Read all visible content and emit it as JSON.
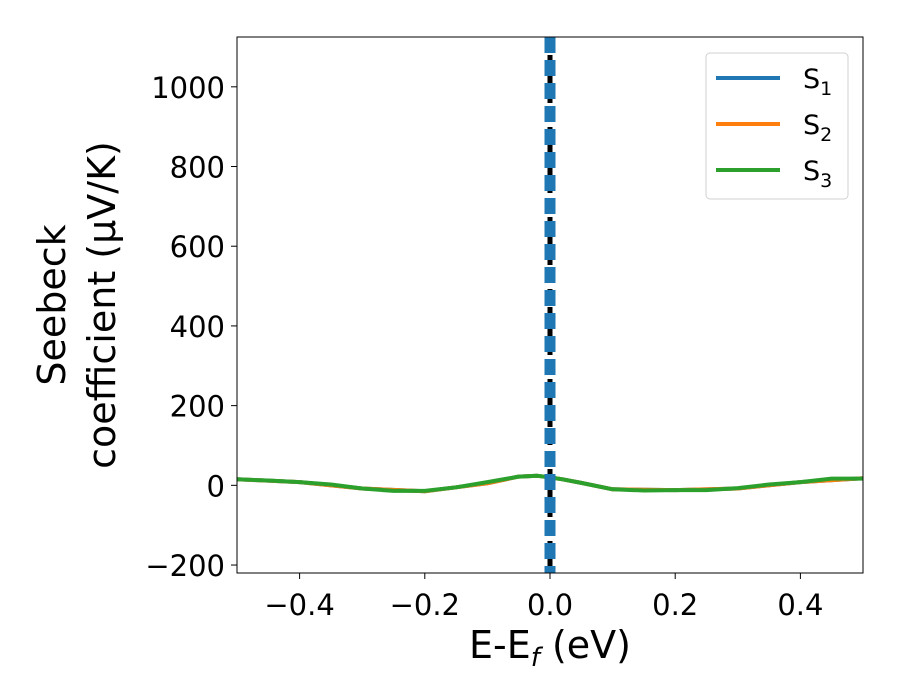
{
  "chart_data": {
    "type": "line",
    "xlabel": "E-E",
    "xlabel_sub": "f",
    "xlabel_unit": " (eV)",
    "ylabel_line1": "Seebeck",
    "ylabel_line2": "coefficient  (μV/K)",
    "xlim": [
      -0.5,
      0.5
    ],
    "ylim": [
      -220,
      1125
    ],
    "xticks": [
      -0.4,
      -0.2,
      0.0,
      0.2,
      0.4
    ],
    "xtick_labels": [
      "−0.4",
      "−0.2",
      "0.0",
      "0.2",
      "0.4"
    ],
    "yticks": [
      -200,
      0,
      200,
      400,
      600,
      800,
      1000
    ],
    "ytick_labels": [
      "−200",
      "0",
      "200",
      "400",
      "600",
      "800",
      "1000"
    ],
    "legend_position": "top-right",
    "series": [
      {
        "name": "S",
        "name_sub": "1",
        "color": "#1f77b4",
        "x": [
          -0.5,
          -0.4,
          -0.3,
          -0.2,
          -0.1,
          -0.05,
          -0.02,
          0.0,
          0.02,
          0.05,
          0.1,
          0.2,
          0.3,
          0.4,
          0.5
        ],
        "y": [
          15,
          8,
          -8,
          -15,
          5,
          22,
          24,
          20,
          15,
          6,
          -10,
          -12,
          -8,
          8,
          18
        ]
      },
      {
        "name": "S",
        "name_sub": "2",
        "color": "#ff7f0e",
        "x": [
          -0.5,
          -0.4,
          -0.3,
          -0.2,
          -0.1,
          -0.05,
          -0.02,
          0.0,
          0.02,
          0.05,
          0.1,
          0.2,
          0.3,
          0.4,
          0.5
        ],
        "y": [
          15,
          8,
          -8,
          -15,
          5,
          22,
          24,
          20,
          15,
          6,
          -10,
          -12,
          -8,
          8,
          18
        ]
      },
      {
        "name": "S",
        "name_sub": "3",
        "color": "#2ca02c",
        "x": [
          -0.5,
          -0.45,
          -0.4,
          -0.35,
          -0.3,
          -0.25,
          -0.2,
          -0.15,
          -0.1,
          -0.05,
          -0.02,
          0.0,
          0.02,
          0.05,
          0.1,
          0.15,
          0.2,
          0.25,
          0.3,
          0.35,
          0.4,
          0.45,
          0.5
        ],
        "y": [
          15,
          12,
          8,
          2,
          -8,
          -14,
          -14,
          -5,
          8,
          22,
          24,
          20,
          15,
          6,
          -10,
          -13,
          -12,
          -12,
          -7,
          2,
          8,
          17,
          17
        ]
      }
    ],
    "vertical_lines": [
      {
        "x": 0.0,
        "color": "#000000",
        "style": "dashed"
      },
      {
        "x": 0.0,
        "color": "#1f77b4",
        "style": "dashed"
      }
    ]
  }
}
